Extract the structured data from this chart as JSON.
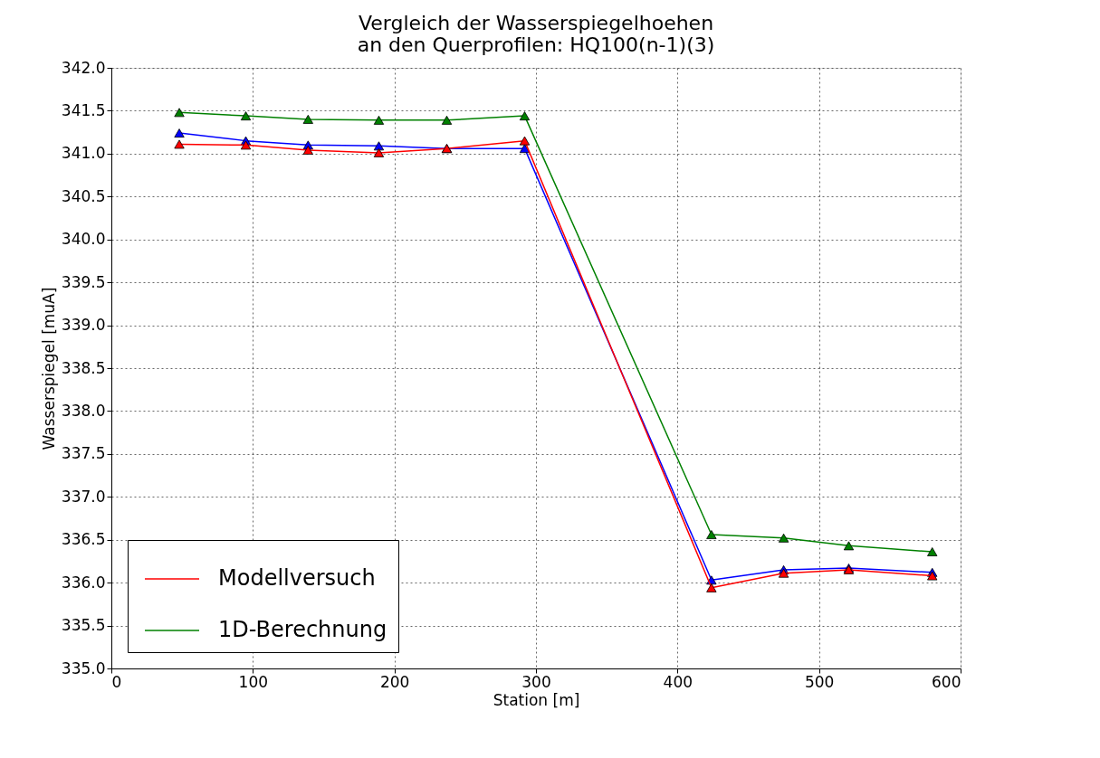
{
  "chart_data": {
    "type": "line",
    "title": "Vergleich der Wasserspiegelhoehen\nan den Querprofilen: HQ100(n-1)(3)",
    "xlabel": "Station [m]",
    "ylabel": "Wasserspiegel [muA]",
    "x": [
      48,
      95,
      139,
      189,
      237,
      292,
      424,
      475,
      521,
      580
    ],
    "series": [
      {
        "color": "#0000ff",
        "values": [
          341.24,
          341.15,
          341.1,
          341.09,
          341.06,
          341.06,
          336.03,
          336.15,
          336.17,
          336.12
        ]
      },
      {
        "name": "Modellversuch",
        "color": "#ff0000",
        "values": [
          341.11,
          341.1,
          341.04,
          341.01,
          341.06,
          341.15,
          335.94,
          336.11,
          336.15,
          336.08
        ]
      },
      {
        "name": "1D-Berechnung",
        "color": "#008000",
        "values": [
          341.48,
          341.44,
          341.4,
          341.39,
          341.39,
          341.44,
          336.56,
          336.52,
          336.43,
          336.36
        ]
      }
    ],
    "xlim": [
      0,
      600
    ],
    "xticks": [
      0,
      100,
      200,
      300,
      400,
      500,
      600
    ],
    "ylim": [
      335,
      342
    ],
    "yticks": [
      {
        "value": 335,
        "label": "335.0"
      },
      {
        "value": 335.5,
        "label": "335.5"
      },
      {
        "value": 336,
        "label": "336.0"
      },
      {
        "value": 336.5,
        "label": "336.5"
      },
      {
        "value": 337,
        "label": "337.0"
      },
      {
        "value": 337.5,
        "label": "337.5"
      },
      {
        "value": 338,
        "label": "338.0"
      },
      {
        "value": 338.5,
        "label": "338.5"
      },
      {
        "value": 339,
        "label": "339.0"
      },
      {
        "value": 339.5,
        "label": "339.5"
      },
      {
        "value": 340,
        "label": "340.0"
      },
      {
        "value": 340.5,
        "label": "340.5"
      },
      {
        "value": 341,
        "label": "341.0"
      },
      {
        "value": 341.5,
        "label": "341.5"
      },
      {
        "value": 342,
        "label": "342.0"
      }
    ],
    "grid": true,
    "legend": "bottom left",
    "marker": "triangle",
    "line_style": "solid"
  }
}
